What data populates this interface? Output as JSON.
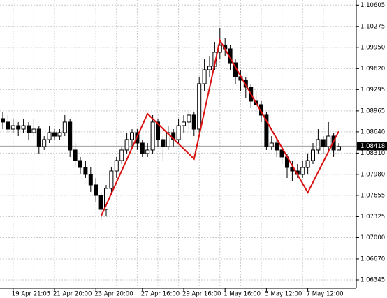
{
  "chart_data": {
    "type": "candlestick",
    "categories": [
      null,
      null,
      "19 Apr 21:05",
      null,
      null,
      null,
      null,
      null,
      null,
      null,
      "21 Apr 20:00",
      null,
      null,
      null,
      null,
      null,
      null,
      null,
      "23 Apr 20:00",
      null,
      null,
      null,
      null,
      null,
      null,
      null,
      null,
      "27 Apr 16:00",
      null,
      null,
      null,
      null,
      null,
      null,
      null,
      "29 Apr 16:00",
      null,
      null,
      null,
      null,
      null,
      null,
      null,
      "1 May 16:00",
      null,
      null,
      null,
      null,
      null,
      null,
      null,
      "5 May 12:00",
      null,
      null,
      null,
      null,
      null,
      null,
      null,
      "7 May 12:00",
      null,
      null,
      null,
      null,
      null,
      null
    ],
    "open": [
      1.08845,
      1.08791,
      1.08682,
      1.08736,
      1.08682,
      1.08736,
      1.08628,
      1.08682,
      1.08412,
      1.0852,
      1.08628,
      1.08574,
      1.08628,
      1.08791,
      1.08358,
      1.08195,
      1.08087,
      1.07979,
      1.07817,
      1.07654,
      1.07438,
      1.07763,
      1.08033,
      1.08195,
      1.08358,
      1.0852,
      1.08628,
      1.08466,
      1.08304,
      1.08358,
      1.08791,
      1.0852,
      1.08412,
      1.08628,
      1.0852,
      1.08736,
      1.08791,
      1.08899,
      1.08682,
      1.09386,
      1.09602,
      1.09656,
      1.09873,
      1.09981,
      1.09927,
      1.0971,
      1.09494,
      1.0944,
      1.09332,
      1.09115,
      1.09061,
      1.08899,
      1.08412,
      1.08466,
      1.08358,
      1.0825,
      1.08087,
      1.08033,
      1.07979,
      1.08087,
      1.08195,
      1.08358,
      1.0852,
      1.08412,
      1.08574,
      1.08358
    ],
    "high": [
      1.08953,
      1.08899,
      1.08845,
      1.08791,
      1.08845,
      1.08791,
      1.08845,
      1.08736,
      1.08574,
      1.08736,
      1.08682,
      1.08682,
      1.08899,
      1.08845,
      1.08466,
      1.0825,
      1.08195,
      1.08087,
      1.07925,
      1.07709,
      1.07817,
      1.08087,
      1.0825,
      1.08412,
      1.08628,
      1.08682,
      1.08682,
      1.0852,
      1.08466,
      1.08899,
      1.08845,
      1.08574,
      1.08736,
      1.08682,
      1.08845,
      1.08899,
      1.08953,
      1.08953,
      1.09494,
      1.09764,
      1.09818,
      1.10035,
      1.10251,
      1.10089,
      1.09981,
      1.09764,
      1.09602,
      1.09494,
      1.09386,
      1.09277,
      1.09115,
      1.08953,
      1.08574,
      1.0852,
      1.08412,
      1.08304,
      1.08195,
      1.08141,
      1.08195,
      1.08304,
      1.08466,
      1.08682,
      1.08574,
      1.08791,
      1.08628,
      1.08466
    ],
    "low": [
      1.08682,
      1.08628,
      1.08628,
      1.08574,
      1.08628,
      1.0852,
      1.08574,
      1.08304,
      1.08358,
      1.08466,
      1.0852,
      1.0852,
      1.08574,
      1.0825,
      1.08087,
      1.07979,
      1.07925,
      1.07709,
      1.07546,
      1.07276,
      1.0733,
      1.07654,
      1.07925,
      1.08141,
      1.08304,
      1.08412,
      1.08358,
      1.0825,
      1.0825,
      1.08304,
      1.08412,
      1.08195,
      1.08358,
      1.08412,
      1.08466,
      1.08628,
      1.08682,
      1.08574,
      1.08628,
      1.09277,
      1.09494,
      1.09602,
      1.09764,
      1.09818,
      1.09602,
      1.09386,
      1.09277,
      1.09169,
      1.09007,
      1.08953,
      1.08791,
      1.08358,
      1.08358,
      1.0825,
      1.08141,
      1.07925,
      1.07871,
      1.07925,
      1.07925,
      1.07979,
      1.08141,
      1.08304,
      1.08304,
      1.08358,
      1.0825,
      1.08358
    ],
    "close": [
      1.08791,
      1.08682,
      1.08736,
      1.08682,
      1.08736,
      1.08628,
      1.08682,
      1.08412,
      1.0852,
      1.08628,
      1.08574,
      1.08628,
      1.08791,
      1.08358,
      1.08195,
      1.08087,
      1.07979,
      1.07817,
      1.07654,
      1.07438,
      1.07763,
      1.08033,
      1.08195,
      1.08358,
      1.0852,
      1.08628,
      1.08466,
      1.08304,
      1.08358,
      1.08791,
      1.0852,
      1.08412,
      1.08628,
      1.0852,
      1.08736,
      1.08791,
      1.08899,
      1.08682,
      1.09386,
      1.09602,
      1.09656,
      1.09873,
      1.09981,
      1.09927,
      1.0971,
      1.09494,
      1.0944,
      1.09332,
      1.09115,
      1.09061,
      1.08899,
      1.08412,
      1.08466,
      1.08358,
      1.0825,
      1.08087,
      1.08033,
      1.07979,
      1.08087,
      1.08195,
      1.08358,
      1.0852,
      1.08412,
      1.08574,
      1.08358,
      1.08412
    ],
    "ylim": [
      1.06215,
      1.10684
    ],
    "yticks": [
      1.10605,
      1.10275,
      {
        "value": 1.0995,
        "label": "1.09950"
      },
      {
        "value": 1.0962,
        "label": "1.09620"
      },
      1.09295,
      1.08965,
      {
        "value": 1.0864,
        "label": "1.08640"
      },
      {
        "value": 1.0831,
        "label": "1.08310"
      },
      {
        "value": 1.0798,
        "label": "1.07980"
      },
      1.07655,
      1.07325,
      {
        "value": 1.07,
        "label": "1.07000"
      },
      {
        "value": 1.0667,
        "label": "1.06670"
      },
      1.06345
    ],
    "grid": true,
    "up_color": "#ffffff",
    "down_color": "#000000",
    "last_price": 1.08418,
    "zigzag": {
      "color": "#d91010",
      "x": [
        19,
        28,
        37,
        42,
        59,
        65
      ],
      "values": [
        1.0733,
        1.0892,
        1.0822,
        1.1006,
        1.077,
        1.0865
      ]
    }
  }
}
